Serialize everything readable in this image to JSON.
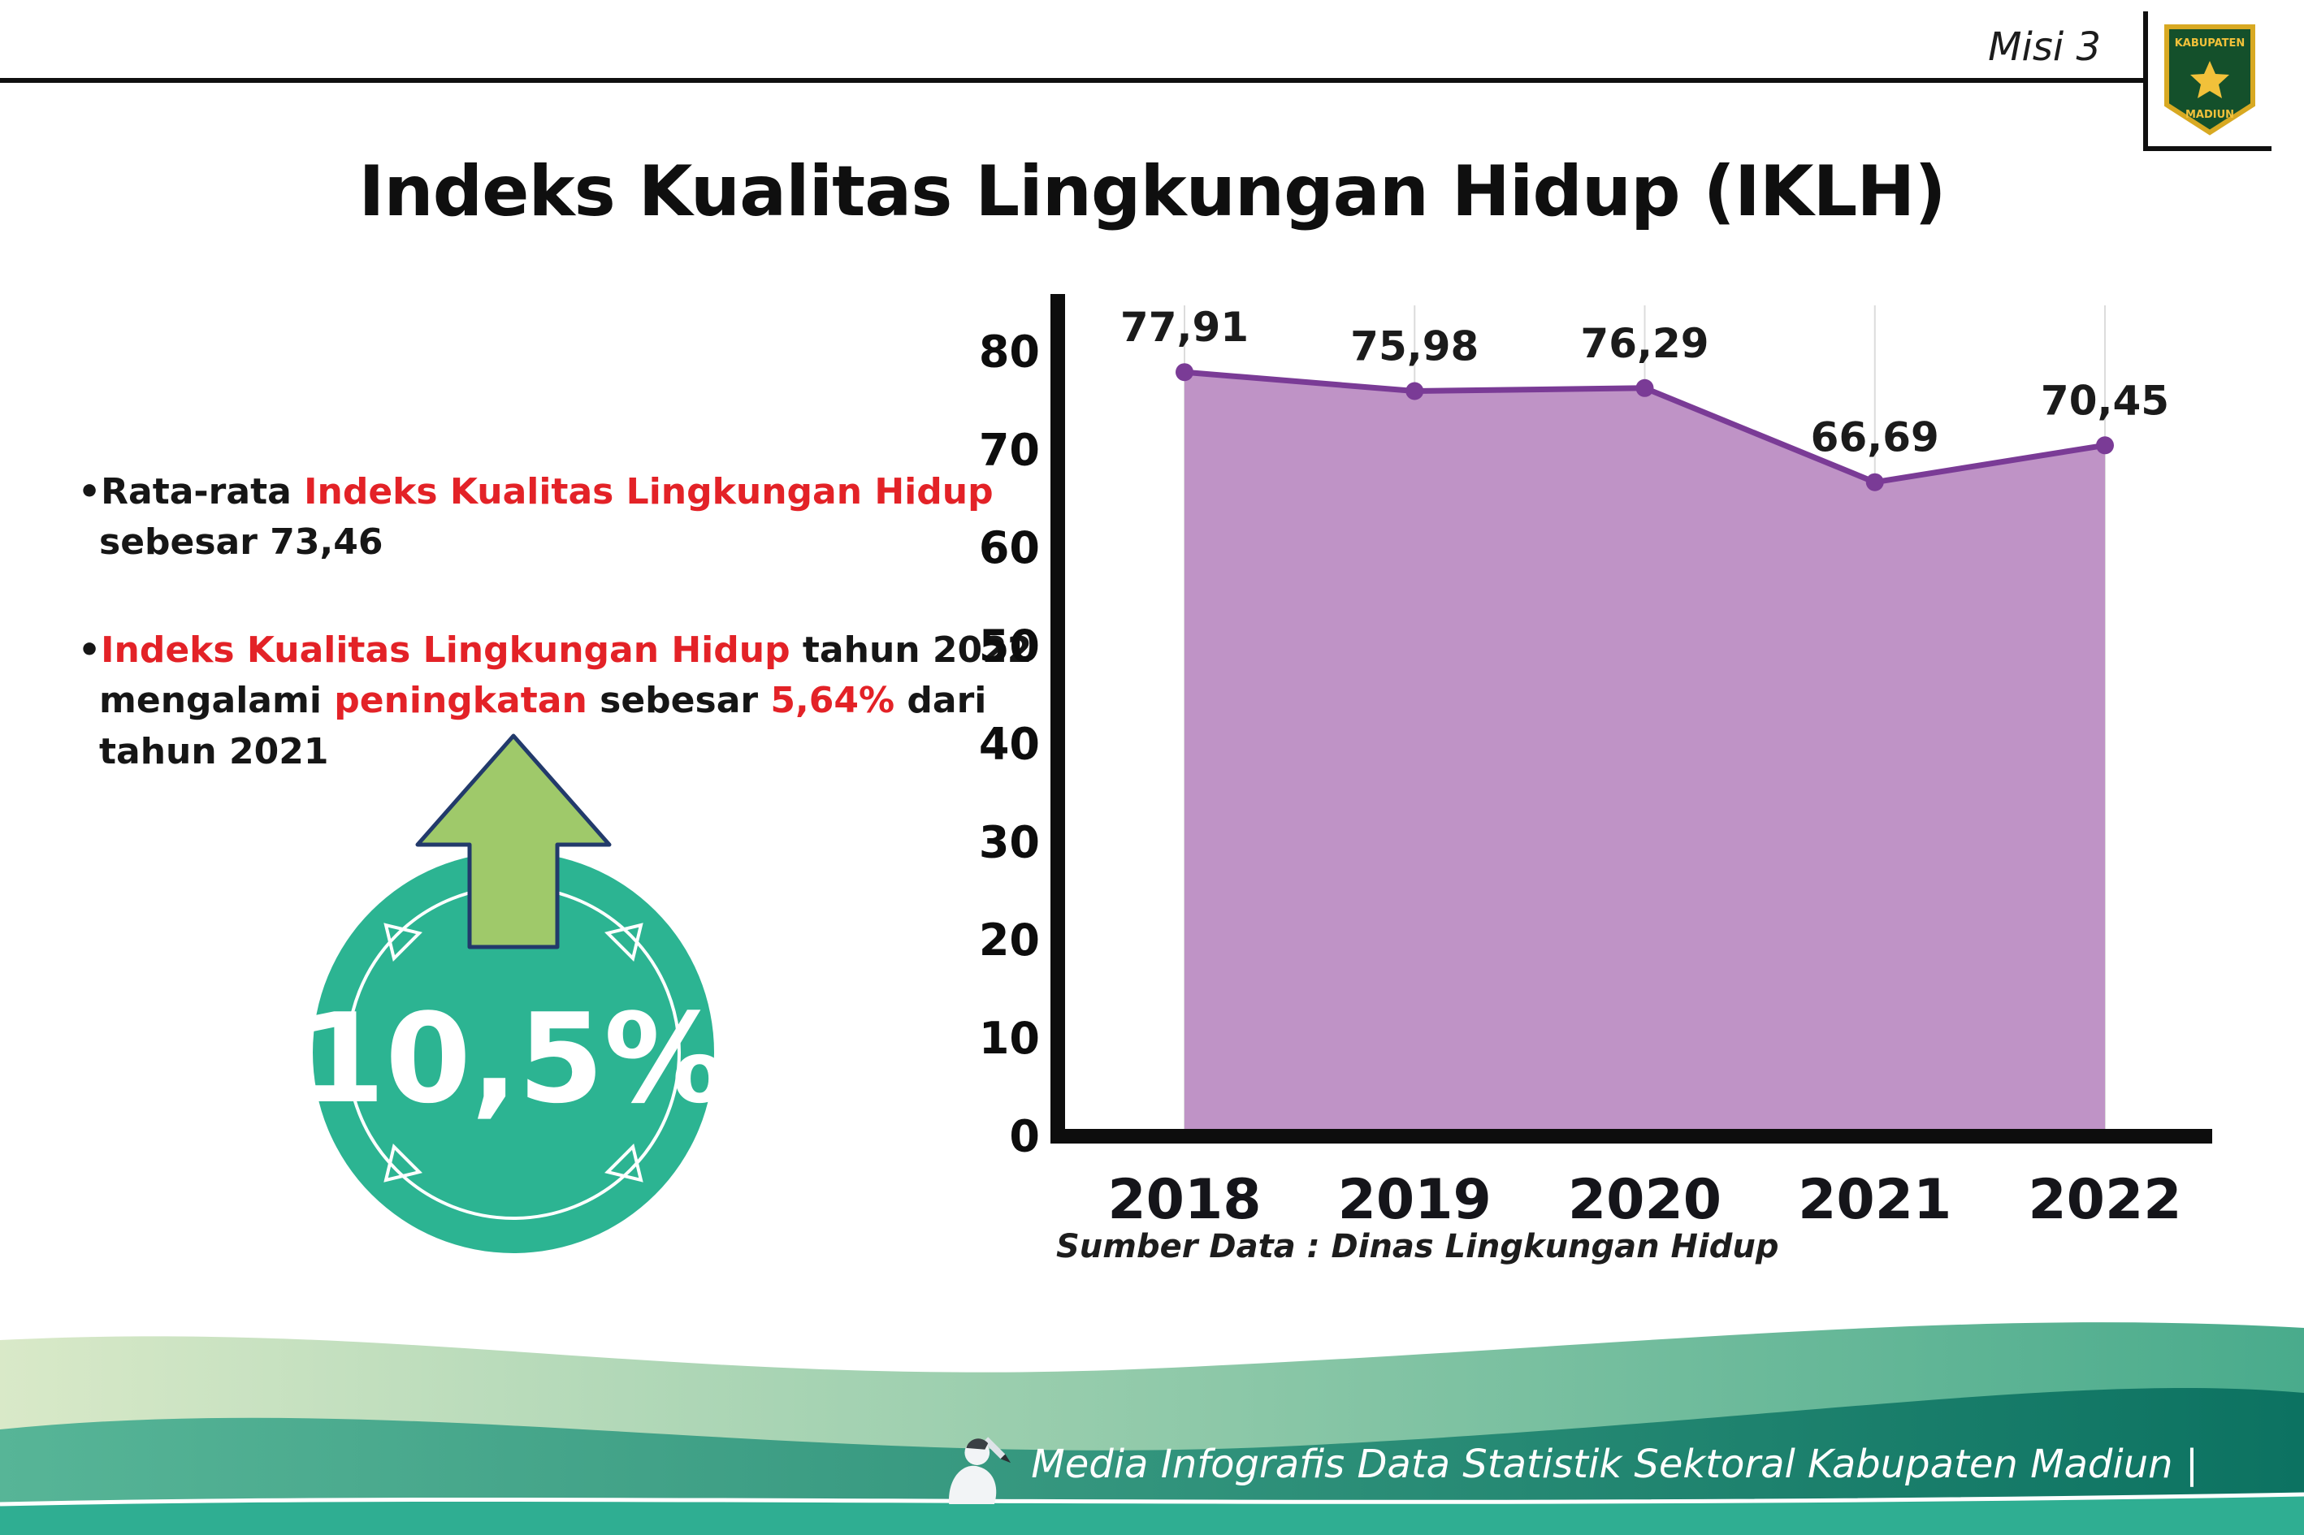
{
  "header": {
    "misi": "Misi 3",
    "title": "Indeks Kualitas Lingkungan Hidup (IKLH)"
  },
  "logo": {
    "line1": "KABUPATEN",
    "line2": "MADIUN"
  },
  "bullets": {
    "b1": {
      "marker": "•",
      "l1_black": "Rata-rata ",
      "l1_red": "Indeks Kualitas Lingkungan Hidup",
      "l2_black": "sebesar 73,46"
    },
    "b2": {
      "marker": "•",
      "l1_red": "Indeks Kualitas Lingkungan Hidup",
      "l1_black": " tahun 2022",
      "l2_black1": "mengalami ",
      "l2_red1": "peningkatan",
      "l2_black2": " sebesar ",
      "l2_red2": "5,64%",
      "l2_black3": " dari",
      "l3_black": "tahun 2021"
    }
  },
  "badge": {
    "value": "10,5%"
  },
  "chart_data": {
    "type": "area",
    "title": "Indeks Kualitas Lingkungan Hidup (IKLH)",
    "categories": [
      "2018",
      "2019",
      "2020",
      "2021",
      "2022"
    ],
    "values": [
      77.91,
      75.98,
      76.29,
      66.69,
      70.45
    ],
    "value_labels": [
      "77,91",
      "75,98",
      "76,29",
      "66,69",
      "70,45"
    ],
    "ylim": [
      0,
      80
    ],
    "yticks": [
      0,
      10,
      20,
      30,
      40,
      50,
      60,
      70,
      80
    ],
    "grid": "vertical",
    "legend": "none",
    "source": "Sumber Data : Dinas Lingkungan Hidup",
    "colors": {
      "area": "#bf93c6",
      "line": "#7a3b96",
      "point": "#7a3b96"
    }
  },
  "footer": {
    "text": "Media Infografis Data Statistik Sektoral Kabupaten Madiun |"
  }
}
